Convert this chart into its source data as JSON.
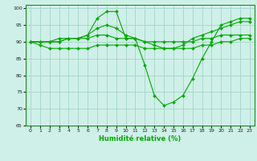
{
  "title": "",
  "xlabel": "Humidité relative (%)",
  "ylabel": "",
  "background_color": "#cff0e8",
  "grid_color": "#aad8cc",
  "line_color": "#00aa00",
  "xlim": [
    -0.5,
    23.5
  ],
  "ylim": [
    65,
    101
  ],
  "yticks": [
    65,
    70,
    75,
    80,
    85,
    90,
    95,
    100
  ],
  "xticks": [
    0,
    1,
    2,
    3,
    4,
    5,
    6,
    7,
    8,
    9,
    10,
    11,
    12,
    13,
    14,
    15,
    16,
    17,
    18,
    19,
    20,
    21,
    22,
    23
  ],
  "series": [
    {
      "x": [
        0,
        1,
        2,
        3,
        4,
        5,
        6,
        7,
        8,
        9,
        10,
        11,
        12,
        13,
        14,
        15,
        16,
        17,
        18,
        19,
        20,
        21,
        22,
        23
      ],
      "y": [
        90,
        90,
        90,
        91,
        91,
        91,
        92,
        97,
        99,
        99,
        91,
        91,
        83,
        74,
        71,
        72,
        74,
        79,
        85,
        90,
        95,
        96,
        97,
        97
      ]
    },
    {
      "x": [
        0,
        1,
        2,
        3,
        4,
        5,
        6,
        7,
        8,
        9,
        10,
        11,
        12,
        13,
        14,
        15,
        16,
        17,
        18,
        19,
        20,
        21,
        22,
        23
      ],
      "y": [
        90,
        90,
        90,
        90,
        91,
        91,
        92,
        94,
        95,
        94,
        92,
        91,
        90,
        89,
        88,
        88,
        89,
        91,
        92,
        93,
        94,
        95,
        96,
        96
      ]
    },
    {
      "x": [
        0,
        1,
        2,
        3,
        4,
        5,
        6,
        7,
        8,
        9,
        10,
        11,
        12,
        13,
        14,
        15,
        16,
        17,
        18,
        19,
        20,
        21,
        22,
        23
      ],
      "y": [
        90,
        90,
        90,
        90,
        91,
        91,
        91,
        92,
        92,
        91,
        91,
        91,
        90,
        90,
        90,
        90,
        90,
        90,
        91,
        91,
        92,
        92,
        92,
        92
      ]
    },
    {
      "x": [
        0,
        1,
        2,
        3,
        4,
        5,
        6,
        7,
        8,
        9,
        10,
        11,
        12,
        13,
        14,
        15,
        16,
        17,
        18,
        19,
        20,
        21,
        22,
        23
      ],
      "y": [
        90,
        89,
        88,
        88,
        88,
        88,
        88,
        89,
        89,
        89,
        89,
        89,
        88,
        88,
        88,
        88,
        88,
        88,
        89,
        89,
        90,
        90,
        91,
        91
      ]
    }
  ]
}
